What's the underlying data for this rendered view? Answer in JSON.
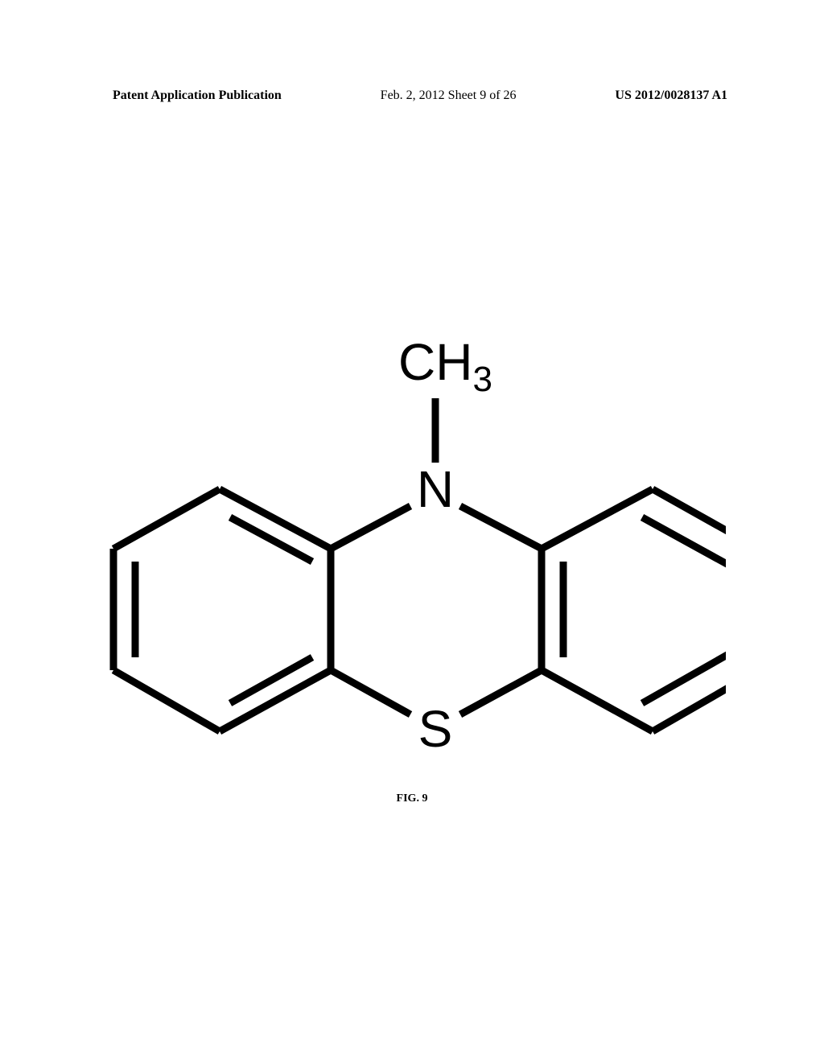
{
  "header": {
    "publication_type": "Patent Application Publication",
    "date_sheet": "Feb. 2, 2012  Sheet 9 of 26",
    "publication_number": "US 2012/0028137 A1"
  },
  "figure": {
    "caption": "FIG. 9"
  },
  "molecule": {
    "ch3_label": "CH",
    "ch3_subscript": "3",
    "n_label": "N",
    "s_label": "S",
    "stroke_color": "#000000",
    "stroke_width": 9,
    "text_color": "#000000",
    "atom_font_size": 64,
    "subscript_font_size": 44
  }
}
